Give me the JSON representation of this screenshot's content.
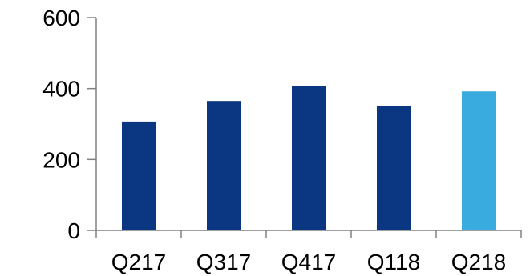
{
  "chart_data": {
    "type": "bar",
    "categories": [
      "Q217",
      "Q317",
      "Q417",
      "Q118",
      "Q218"
    ],
    "values": [
      307,
      365,
      406,
      351,
      392
    ],
    "ylim": [
      0,
      600
    ],
    "yticks": [
      0,
      200,
      400,
      600
    ],
    "ytick_labels": [
      "0",
      "200",
      "400",
      "600"
    ],
    "grid": false,
    "legend": "none",
    "colors": {
      "bar": "#0a3682",
      "highlight_bar": "#3aabde",
      "axis": "#808080",
      "text": "#000000"
    },
    "highlight_index": 4
  }
}
